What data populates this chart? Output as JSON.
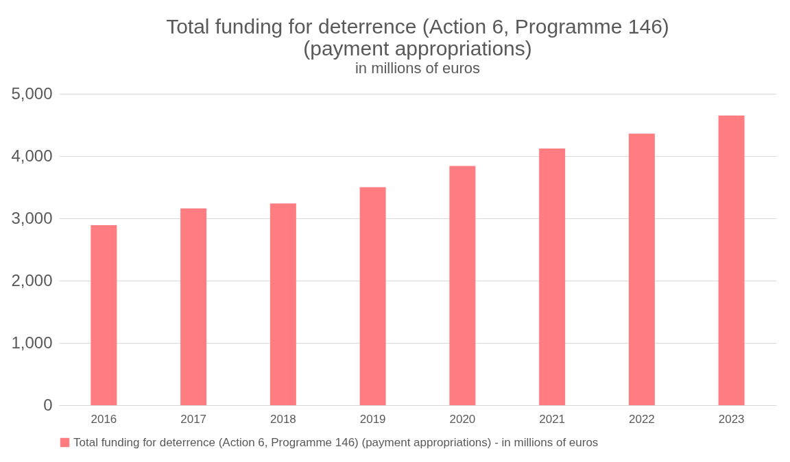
{
  "chart_data": {
    "type": "bar",
    "title": "Total funding for deterrence (Action 6, Programme 146)\n(payment appropriations)",
    "subtitle": "in millions of euros",
    "categories": [
      "2016",
      "2017",
      "2018",
      "2019",
      "2020",
      "2021",
      "2022",
      "2023"
    ],
    "series": [
      {
        "name": "Total funding for deterrence (Action 6, Programme 146) (payment appropriations) - in millions of euros",
        "color": "#ff7c80",
        "values": [
          2890,
          3160,
          3240,
          3500,
          3840,
          4120,
          4360,
          4650
        ]
      }
    ],
    "ylim": [
      0,
      5000
    ],
    "yticks": [
      {
        "value": 0,
        "label": "0"
      },
      {
        "value": 1000,
        "label": "1,000"
      },
      {
        "value": 2000,
        "label": "2,000"
      },
      {
        "value": 3000,
        "label": "3,000"
      },
      {
        "value": 4000,
        "label": "4,000"
      },
      {
        "value": 5000,
        "label": "5,000"
      }
    ],
    "grid": "y",
    "legend": "bottom"
  }
}
